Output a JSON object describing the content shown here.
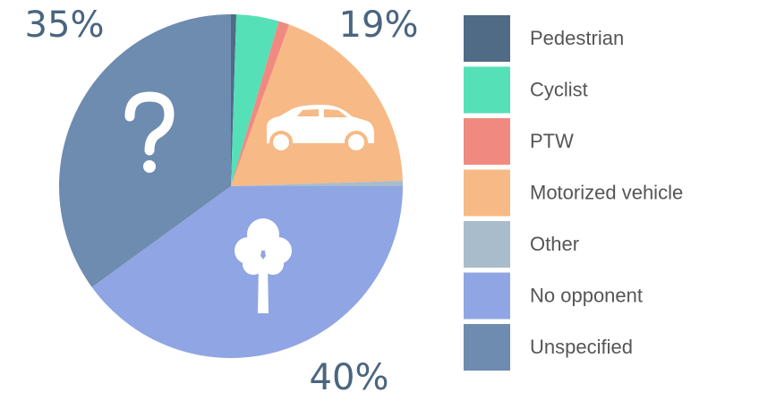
{
  "chart_data": {
    "type": "pie",
    "categories": [
      "Pedestrian",
      "Cyclist",
      "PTW",
      "Motorized vehicle",
      "Other",
      "No opponent",
      "Unspecified"
    ],
    "values": [
      0.5,
      4,
      1,
      19,
      0.5,
      40,
      35
    ],
    "value_labels": [
      null,
      null,
      null,
      "19%",
      null,
      "40%",
      "35%"
    ],
    "colors": [
      "#4f6b86",
      "#55e0b8",
      "#f08a80",
      "#f7b985",
      "#a9bccb",
      "#90a5e3",
      "#6e8bb0"
    ],
    "legend": "right"
  }
}
